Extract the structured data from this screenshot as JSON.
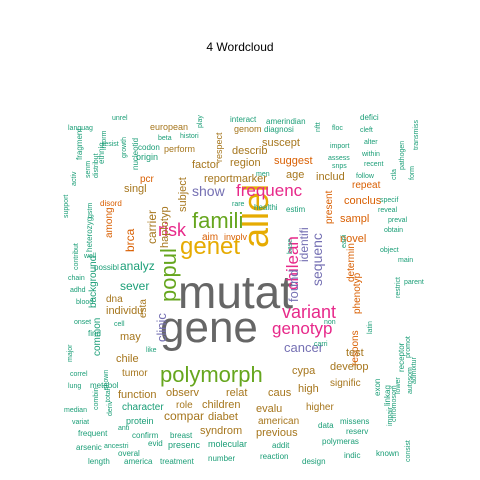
{
  "title": "4  Wordcloud",
  "palette": {
    "gray": "#666666",
    "green": "#66a61e",
    "gold": "#e6ab02",
    "teal": "#1b9e77",
    "orange": "#d95f02",
    "purple": "#7570b3",
    "pink": "#e7298a",
    "brown": "#a6761d"
  },
  "words": [
    {
      "text": "mutat",
      "color": "gray"
    },
    {
      "text": "gene",
      "color": "gray"
    },
    {
      "text": "allel",
      "color": "gold"
    },
    {
      "text": "genet",
      "color": "gold"
    },
    {
      "text": "famili",
      "color": "green"
    },
    {
      "text": "polymorph",
      "color": "green"
    },
    {
      "text": "popul",
      "color": "green"
    },
    {
      "text": "variant",
      "color": "pink"
    },
    {
      "text": "risk",
      "color": "pink"
    },
    {
      "text": "frequenc",
      "color": "pink"
    },
    {
      "text": "chilean",
      "color": "pink"
    },
    {
      "text": "genotyp",
      "color": "pink"
    },
    {
      "text": "cancer",
      "color": "purple"
    },
    {
      "text": "identifi",
      "color": "purple"
    },
    {
      "text": "found",
      "color": "purple"
    },
    {
      "text": "sequenc",
      "color": "purple"
    },
    {
      "text": "show",
      "color": "purple"
    },
    {
      "text": "clinic",
      "color": "purple"
    },
    {
      "text": "haplotyp",
      "color": "brown"
    },
    {
      "text": "analyz",
      "color": "teal"
    },
    {
      "text": "sever",
      "color": "teal"
    },
    {
      "text": "region",
      "color": "brown"
    },
    {
      "text": "factor",
      "color": "brown"
    },
    {
      "text": "suggest",
      "color": "orange"
    },
    {
      "text": "age",
      "color": "brown"
    },
    {
      "text": "includ",
      "color": "brown"
    },
    {
      "text": "describ",
      "color": "brown"
    },
    {
      "text": "suscept",
      "color": "brown"
    },
    {
      "text": "reportmarker",
      "color": "brown"
    },
    {
      "text": "subject",
      "color": "brown"
    },
    {
      "text": "singl",
      "color": "brown"
    },
    {
      "text": "brca",
      "color": "orange"
    },
    {
      "text": "carrier",
      "color": "brown"
    },
    {
      "text": "aim",
      "color": "orange"
    },
    {
      "text": "involv",
      "color": "orange"
    },
    {
      "text": "sampl",
      "color": "orange"
    },
    {
      "text": "novel",
      "color": "orange"
    },
    {
      "text": "conclus",
      "color": "orange"
    },
    {
      "text": "repeat",
      "color": "orange"
    },
    {
      "text": "present",
      "color": "orange"
    },
    {
      "text": "determin",
      "color": "orange"
    },
    {
      "text": "phenotyp",
      "color": "orange"
    },
    {
      "text": "respons",
      "color": "orange"
    },
    {
      "text": "observ",
      "color": "brown"
    },
    {
      "text": "relat",
      "color": "brown"
    },
    {
      "text": "caus",
      "color": "brown"
    },
    {
      "text": "high",
      "color": "brown"
    },
    {
      "text": "cypa",
      "color": "brown"
    },
    {
      "text": "develop",
      "color": "brown"
    },
    {
      "text": "test",
      "color": "brown"
    },
    {
      "text": "signific",
      "color": "brown"
    },
    {
      "text": "role",
      "color": "brown"
    },
    {
      "text": "children",
      "color": "brown"
    },
    {
      "text": "evalu",
      "color": "brown"
    },
    {
      "text": "higher",
      "color": "brown"
    },
    {
      "text": "compar",
      "color": "brown"
    },
    {
      "text": "diabet",
      "color": "brown"
    },
    {
      "text": "syndrom",
      "color": "brown"
    },
    {
      "text": "previous",
      "color": "brown"
    },
    {
      "text": "american",
      "color": "brown"
    },
    {
      "text": "function",
      "color": "brown"
    },
    {
      "text": "character",
      "color": "teal"
    },
    {
      "text": "protein",
      "color": "teal"
    },
    {
      "text": "tumor",
      "color": "brown"
    },
    {
      "text": "chile",
      "color": "brown"
    },
    {
      "text": "dna",
      "color": "brown"
    },
    {
      "text": "esta",
      "color": "brown"
    },
    {
      "text": "may",
      "color": "brown"
    },
    {
      "text": "individu",
      "color": "brown"
    },
    {
      "text": "background",
      "color": "teal"
    },
    {
      "text": "common",
      "color": "teal"
    },
    {
      "text": "confirm",
      "color": "teal"
    },
    {
      "text": "breast",
      "color": "teal"
    },
    {
      "text": "molecular",
      "color": "teal"
    },
    {
      "text": "addit",
      "color": "teal"
    },
    {
      "text": "presenc",
      "color": "teal"
    },
    {
      "text": "number",
      "color": "teal"
    },
    {
      "text": "reaction",
      "color": "teal"
    },
    {
      "text": "design",
      "color": "teal"
    },
    {
      "text": "treatment",
      "color": "teal"
    },
    {
      "text": "america",
      "color": "teal"
    },
    {
      "text": "overal",
      "color": "teal"
    },
    {
      "text": "length",
      "color": "teal"
    },
    {
      "text": "evid",
      "color": "teal"
    },
    {
      "text": "data",
      "color": "teal"
    },
    {
      "text": "missens",
      "color": "teal"
    },
    {
      "text": "polymeras",
      "color": "teal"
    },
    {
      "text": "reserv",
      "color": "teal"
    },
    {
      "text": "indic",
      "color": "teal"
    },
    {
      "text": "known",
      "color": "teal"
    },
    {
      "text": "exon",
      "color": "teal"
    },
    {
      "text": "linkag",
      "color": "teal"
    },
    {
      "text": "chromosom",
      "color": "teal"
    },
    {
      "text": "receptor",
      "color": "teal"
    },
    {
      "text": "autosom",
      "color": "teal"
    },
    {
      "text": "admixtur",
      "color": "teal"
    },
    {
      "text": "promot",
      "color": "teal"
    },
    {
      "text": "impair",
      "color": "teal"
    },
    {
      "text": "lower",
      "color": "teal"
    },
    {
      "text": "consist",
      "color": "teal"
    },
    {
      "text": "arsenic",
      "color": "teal"
    },
    {
      "text": "frequent",
      "color": "teal"
    },
    {
      "text": "variat",
      "color": "teal"
    },
    {
      "text": "median",
      "color": "teal"
    },
    {
      "text": "lung",
      "color": "teal"
    },
    {
      "text": "correl",
      "color": "teal"
    },
    {
      "text": "major",
      "color": "teal"
    },
    {
      "text": "onset",
      "color": "teal"
    },
    {
      "text": "blood",
      "color": "teal"
    },
    {
      "text": "adhd",
      "color": "teal"
    },
    {
      "text": "chain",
      "color": "teal"
    },
    {
      "text": "contribut",
      "color": "teal"
    },
    {
      "text": "support",
      "color": "teal"
    },
    {
      "text": "activ",
      "color": "teal"
    },
    {
      "text": "languag",
      "color": "teal"
    },
    {
      "text": "fragment",
      "color": "teal"
    },
    {
      "text": "ethnic",
      "color": "teal"
    },
    {
      "text": "heterozyg",
      "color": "teal"
    },
    {
      "text": "possibl",
      "color": "teal"
    },
    {
      "text": "metabol",
      "color": "teal"
    },
    {
      "text": "find",
      "color": "teal"
    },
    {
      "text": "among",
      "color": "orange"
    },
    {
      "text": "disord",
      "color": "orange"
    },
    {
      "text": "pcr",
      "color": "orange"
    },
    {
      "text": "origin",
      "color": "teal"
    },
    {
      "text": "nucleotid",
      "color": "teal"
    },
    {
      "text": "codon",
      "color": "teal"
    },
    {
      "text": "european",
      "color": "brown"
    },
    {
      "text": "perform",
      "color": "brown"
    },
    {
      "text": "respect",
      "color": "brown"
    },
    {
      "text": "genom",
      "color": "brown"
    },
    {
      "text": "interact",
      "color": "teal"
    },
    {
      "text": "amerindian",
      "color": "teal"
    },
    {
      "text": "diagnosi",
      "color": "teal"
    },
    {
      "text": "histori",
      "color": "teal"
    },
    {
      "text": "beta",
      "color": "teal"
    },
    {
      "text": "play",
      "color": "teal"
    },
    {
      "text": "men",
      "color": "teal"
    },
    {
      "text": "defici",
      "color": "teal"
    },
    {
      "text": "cleft",
      "color": "teal"
    },
    {
      "text": "alter",
      "color": "teal"
    },
    {
      "text": "within",
      "color": "teal"
    },
    {
      "text": "recent",
      "color": "teal"
    },
    {
      "text": "import",
      "color": "teal"
    },
    {
      "text": "assess",
      "color": "teal"
    },
    {
      "text": "snps",
      "color": "teal"
    },
    {
      "text": "follow",
      "color": "teal"
    },
    {
      "text": "ctla",
      "color": "teal"
    },
    {
      "text": "pathogen",
      "color": "teal"
    },
    {
      "text": "transmiss",
      "color": "teal"
    },
    {
      "text": "form",
      "color": "teal"
    },
    {
      "text": "specif",
      "color": "teal"
    },
    {
      "text": "reveal",
      "color": "teal"
    },
    {
      "text": "preval",
      "color": "teal"
    },
    {
      "text": "obtain",
      "color": "teal"
    },
    {
      "text": "main",
      "color": "teal"
    },
    {
      "text": "object",
      "color": "teal"
    },
    {
      "text": "parent",
      "color": "teal"
    },
    {
      "text": "restrict",
      "color": "teal"
    },
    {
      "text": "healthi",
      "color": "teal"
    },
    {
      "text": "estim",
      "color": "teal"
    },
    {
      "text": "rare",
      "color": "teal"
    },
    {
      "text": "base",
      "color": "teal"
    },
    {
      "text": "carri",
      "color": "teal"
    },
    {
      "text": "non",
      "color": "teal"
    },
    {
      "text": "latin",
      "color": "teal"
    },
    {
      "text": "like",
      "color": "teal"
    },
    {
      "text": "anti",
      "color": "teal"
    },
    {
      "text": "resist",
      "color": "teal"
    },
    {
      "text": "unrel",
      "color": "teal"
    },
    {
      "text": "inform",
      "color": "teal"
    },
    {
      "text": "distribut",
      "color": "teal"
    },
    {
      "text": "growth",
      "color": "teal"
    },
    {
      "text": "senm",
      "color": "teal"
    },
    {
      "text": "well",
      "color": "teal"
    },
    {
      "text": "ancestri",
      "color": "teal"
    },
    {
      "text": "combin",
      "color": "teal"
    },
    {
      "text": "total",
      "color": "teal"
    },
    {
      "text": "deriv",
      "color": "teal"
    },
    {
      "text": "shown",
      "color": "teal"
    },
    {
      "text": "floc",
      "color": "teal"
    },
    {
      "text": "nftt",
      "color": "teal"
    },
    {
      "text": "earli",
      "color": "teal"
    },
    {
      "text": "gstm",
      "color": "teal"
    },
    {
      "text": "cell",
      "color": "teal"
    }
  ]
}
